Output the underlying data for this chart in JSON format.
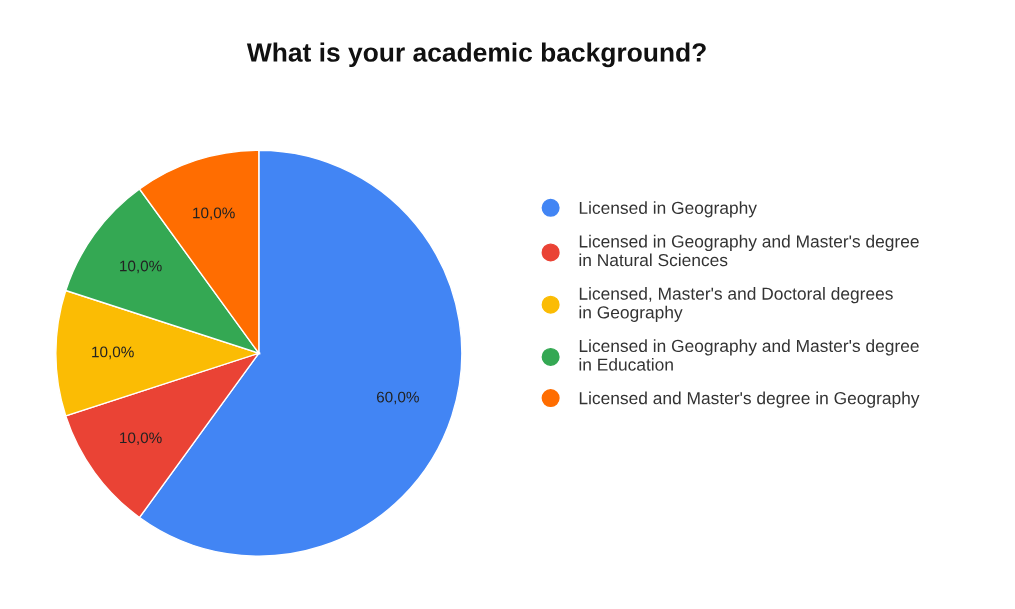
{
  "chart_data": {
    "type": "pie",
    "title": "What is your academic background?",
    "categories": [
      "Licensed in Geography",
      "Licensed in Geography and Master's degree in Natural Sciences",
      "Licensed, Master's and Doctoral degrees in Geography",
      "Licensed in Geography and Master's degree in Education",
      "Licensed and Master's degree in Geography"
    ],
    "values": [
      60,
      10,
      10,
      10,
      10
    ],
    "value_labels": [
      "60,0%",
      "10,0%",
      "10,0%",
      "10,0%",
      "10,0%"
    ],
    "colors": [
      "#4285f4",
      "#ea4335",
      "#fbbc04",
      "#34a853",
      "#ff6d01"
    ],
    "legend": "right"
  }
}
